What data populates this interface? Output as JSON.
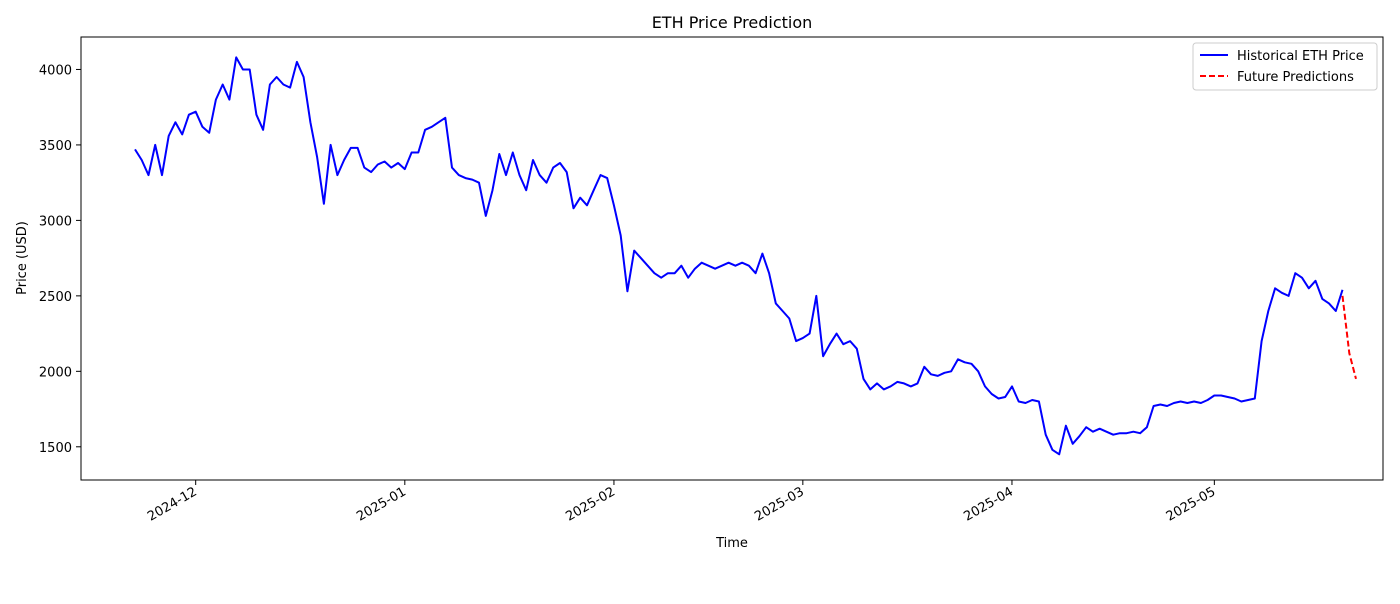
{
  "chart_data": {
    "type": "line",
    "title": "ETH Price Prediction",
    "xlabel": "Time",
    "ylabel": "Price (USD)",
    "xlim": [
      "2024-11-14",
      "2025-05-26"
    ],
    "ylim": [
      1280,
      4215
    ],
    "x_ticks": [
      "2024-12",
      "2025-01",
      "2025-02",
      "2025-03",
      "2025-04",
      "2025-05"
    ],
    "y_ticks": [
      1500,
      2000,
      2500,
      3000,
      3500,
      4000
    ],
    "grid": false,
    "legend": {
      "position": "top-right"
    },
    "series": [
      {
        "name": "Historical ETH Price",
        "color": "#0000ff",
        "style": "solid",
        "points": [
          [
            "2024-11-22",
            3470
          ],
          [
            "2024-11-23",
            3400
          ],
          [
            "2024-11-24",
            3300
          ],
          [
            "2024-11-25",
            3500
          ],
          [
            "2024-11-26",
            3300
          ],
          [
            "2024-11-27",
            3560
          ],
          [
            "2024-11-28",
            3650
          ],
          [
            "2024-11-29",
            3570
          ],
          [
            "2024-11-30",
            3700
          ],
          [
            "2024-12-01",
            3720
          ],
          [
            "2024-12-02",
            3620
          ],
          [
            "2024-12-03",
            3580
          ],
          [
            "2024-12-04",
            3800
          ],
          [
            "2024-12-05",
            3900
          ],
          [
            "2024-12-06",
            3800
          ],
          [
            "2024-12-07",
            4080
          ],
          [
            "2024-12-08",
            4000
          ],
          [
            "2024-12-09",
            4000
          ],
          [
            "2024-12-10",
            3700
          ],
          [
            "2024-12-11",
            3600
          ],
          [
            "2024-12-12",
            3900
          ],
          [
            "2024-12-13",
            3950
          ],
          [
            "2024-12-14",
            3900
          ],
          [
            "2024-12-15",
            3880
          ],
          [
            "2024-12-16",
            4050
          ],
          [
            "2024-12-17",
            3950
          ],
          [
            "2024-12-18",
            3650
          ],
          [
            "2024-12-19",
            3420
          ],
          [
            "2024-12-20",
            3110
          ],
          [
            "2024-12-21",
            3500
          ],
          [
            "2024-12-22",
            3300
          ],
          [
            "2024-12-23",
            3400
          ],
          [
            "2024-12-24",
            3480
          ],
          [
            "2024-12-25",
            3480
          ],
          [
            "2024-12-26",
            3350
          ],
          [
            "2024-12-27",
            3320
          ],
          [
            "2024-12-28",
            3370
          ],
          [
            "2024-12-29",
            3390
          ],
          [
            "2024-12-30",
            3350
          ],
          [
            "2024-12-31",
            3380
          ],
          [
            "2025-01-01",
            3340
          ],
          [
            "2025-01-02",
            3450
          ],
          [
            "2025-01-03",
            3450
          ],
          [
            "2025-01-04",
            3600
          ],
          [
            "2025-01-05",
            3620
          ],
          [
            "2025-01-06",
            3650
          ],
          [
            "2025-01-07",
            3680
          ],
          [
            "2025-01-08",
            3350
          ],
          [
            "2025-01-09",
            3300
          ],
          [
            "2025-01-10",
            3280
          ],
          [
            "2025-01-11",
            3270
          ],
          [
            "2025-01-12",
            3250
          ],
          [
            "2025-01-13",
            3030
          ],
          [
            "2025-01-14",
            3200
          ],
          [
            "2025-01-15",
            3440
          ],
          [
            "2025-01-16",
            3300
          ],
          [
            "2025-01-17",
            3450
          ],
          [
            "2025-01-18",
            3300
          ],
          [
            "2025-01-19",
            3200
          ],
          [
            "2025-01-20",
            3400
          ],
          [
            "2025-01-21",
            3300
          ],
          [
            "2025-01-22",
            3250
          ],
          [
            "2025-01-23",
            3350
          ],
          [
            "2025-01-24",
            3380
          ],
          [
            "2025-01-25",
            3320
          ],
          [
            "2025-01-26",
            3080
          ],
          [
            "2025-01-27",
            3150
          ],
          [
            "2025-01-28",
            3100
          ],
          [
            "2025-01-29",
            3200
          ],
          [
            "2025-01-30",
            3300
          ],
          [
            "2025-01-31",
            3280
          ],
          [
            "2025-02-01",
            3100
          ],
          [
            "2025-02-02",
            2900
          ],
          [
            "2025-02-03",
            2530
          ],
          [
            "2025-02-04",
            2800
          ],
          [
            "2025-02-05",
            2750
          ],
          [
            "2025-02-06",
            2700
          ],
          [
            "2025-02-07",
            2650
          ],
          [
            "2025-02-08",
            2620
          ],
          [
            "2025-02-09",
            2650
          ],
          [
            "2025-02-10",
            2650
          ],
          [
            "2025-02-11",
            2700
          ],
          [
            "2025-02-12",
            2620
          ],
          [
            "2025-02-13",
            2680
          ],
          [
            "2025-02-14",
            2720
          ],
          [
            "2025-02-15",
            2700
          ],
          [
            "2025-02-16",
            2680
          ],
          [
            "2025-02-17",
            2700
          ],
          [
            "2025-02-18",
            2720
          ],
          [
            "2025-02-19",
            2700
          ],
          [
            "2025-02-20",
            2720
          ],
          [
            "2025-02-21",
            2700
          ],
          [
            "2025-02-22",
            2650
          ],
          [
            "2025-02-23",
            2780
          ],
          [
            "2025-02-24",
            2650
          ],
          [
            "2025-02-25",
            2450
          ],
          [
            "2025-02-26",
            2400
          ],
          [
            "2025-02-27",
            2350
          ],
          [
            "2025-02-28",
            2200
          ],
          [
            "2025-03-01",
            2220
          ],
          [
            "2025-03-02",
            2250
          ],
          [
            "2025-03-03",
            2500
          ],
          [
            "2025-03-04",
            2100
          ],
          [
            "2025-03-05",
            2180
          ],
          [
            "2025-03-06",
            2250
          ],
          [
            "2025-03-07",
            2180
          ],
          [
            "2025-03-08",
            2200
          ],
          [
            "2025-03-09",
            2150
          ],
          [
            "2025-03-10",
            1950
          ],
          [
            "2025-03-11",
            1880
          ],
          [
            "2025-03-12",
            1920
          ],
          [
            "2025-03-13",
            1880
          ],
          [
            "2025-03-14",
            1900
          ],
          [
            "2025-03-15",
            1930
          ],
          [
            "2025-03-16",
            1920
          ],
          [
            "2025-03-17",
            1900
          ],
          [
            "2025-03-18",
            1920
          ],
          [
            "2025-03-19",
            2030
          ],
          [
            "2025-03-20",
            1980
          ],
          [
            "2025-03-21",
            1970
          ],
          [
            "2025-03-22",
            1990
          ],
          [
            "2025-03-23",
            2000
          ],
          [
            "2025-03-24",
            2080
          ],
          [
            "2025-03-25",
            2060
          ],
          [
            "2025-03-26",
            2050
          ],
          [
            "2025-03-27",
            2000
          ],
          [
            "2025-03-28",
            1900
          ],
          [
            "2025-03-29",
            1850
          ],
          [
            "2025-03-30",
            1820
          ],
          [
            "2025-03-31",
            1830
          ],
          [
            "2025-04-01",
            1900
          ],
          [
            "2025-04-02",
            1800
          ],
          [
            "2025-04-03",
            1790
          ],
          [
            "2025-04-04",
            1810
          ],
          [
            "2025-04-05",
            1800
          ],
          [
            "2025-04-06",
            1580
          ],
          [
            "2025-04-07",
            1480
          ],
          [
            "2025-04-08",
            1450
          ],
          [
            "2025-04-09",
            1640
          ],
          [
            "2025-04-10",
            1520
          ],
          [
            "2025-04-11",
            1570
          ],
          [
            "2025-04-12",
            1630
          ],
          [
            "2025-04-13",
            1600
          ],
          [
            "2025-04-14",
            1620
          ],
          [
            "2025-04-15",
            1600
          ],
          [
            "2025-04-16",
            1580
          ],
          [
            "2025-04-17",
            1590
          ],
          [
            "2025-04-18",
            1590
          ],
          [
            "2025-04-19",
            1600
          ],
          [
            "2025-04-20",
            1590
          ],
          [
            "2025-04-21",
            1630
          ],
          [
            "2025-04-22",
            1770
          ],
          [
            "2025-04-23",
            1780
          ],
          [
            "2025-04-24",
            1770
          ],
          [
            "2025-04-25",
            1790
          ],
          [
            "2025-04-26",
            1800
          ],
          [
            "2025-04-27",
            1790
          ],
          [
            "2025-04-28",
            1800
          ],
          [
            "2025-04-29",
            1790
          ],
          [
            "2025-04-30",
            1810
          ],
          [
            "2025-05-01",
            1840
          ],
          [
            "2025-05-02",
            1840
          ],
          [
            "2025-05-03",
            1830
          ],
          [
            "2025-05-04",
            1820
          ],
          [
            "2025-05-05",
            1800
          ],
          [
            "2025-05-06",
            1810
          ],
          [
            "2025-05-07",
            1820
          ],
          [
            "2025-05-08",
            2200
          ],
          [
            "2025-05-09",
            2400
          ],
          [
            "2025-05-10",
            2550
          ],
          [
            "2025-05-11",
            2520
          ],
          [
            "2025-05-12",
            2500
          ],
          [
            "2025-05-13",
            2650
          ],
          [
            "2025-05-14",
            2620
          ],
          [
            "2025-05-15",
            2550
          ],
          [
            "2025-05-16",
            2600
          ],
          [
            "2025-05-17",
            2480
          ],
          [
            "2025-05-18",
            2450
          ],
          [
            "2025-05-19",
            2400
          ],
          [
            "2025-05-20",
            2540
          ]
        ]
      },
      {
        "name": "Future Predictions",
        "color": "#ff0000",
        "style": "dashed",
        "points": [
          [
            "2025-05-20",
            2500
          ],
          [
            "2025-05-21",
            2120
          ],
          [
            "2025-05-22",
            1950
          ]
        ]
      }
    ]
  }
}
